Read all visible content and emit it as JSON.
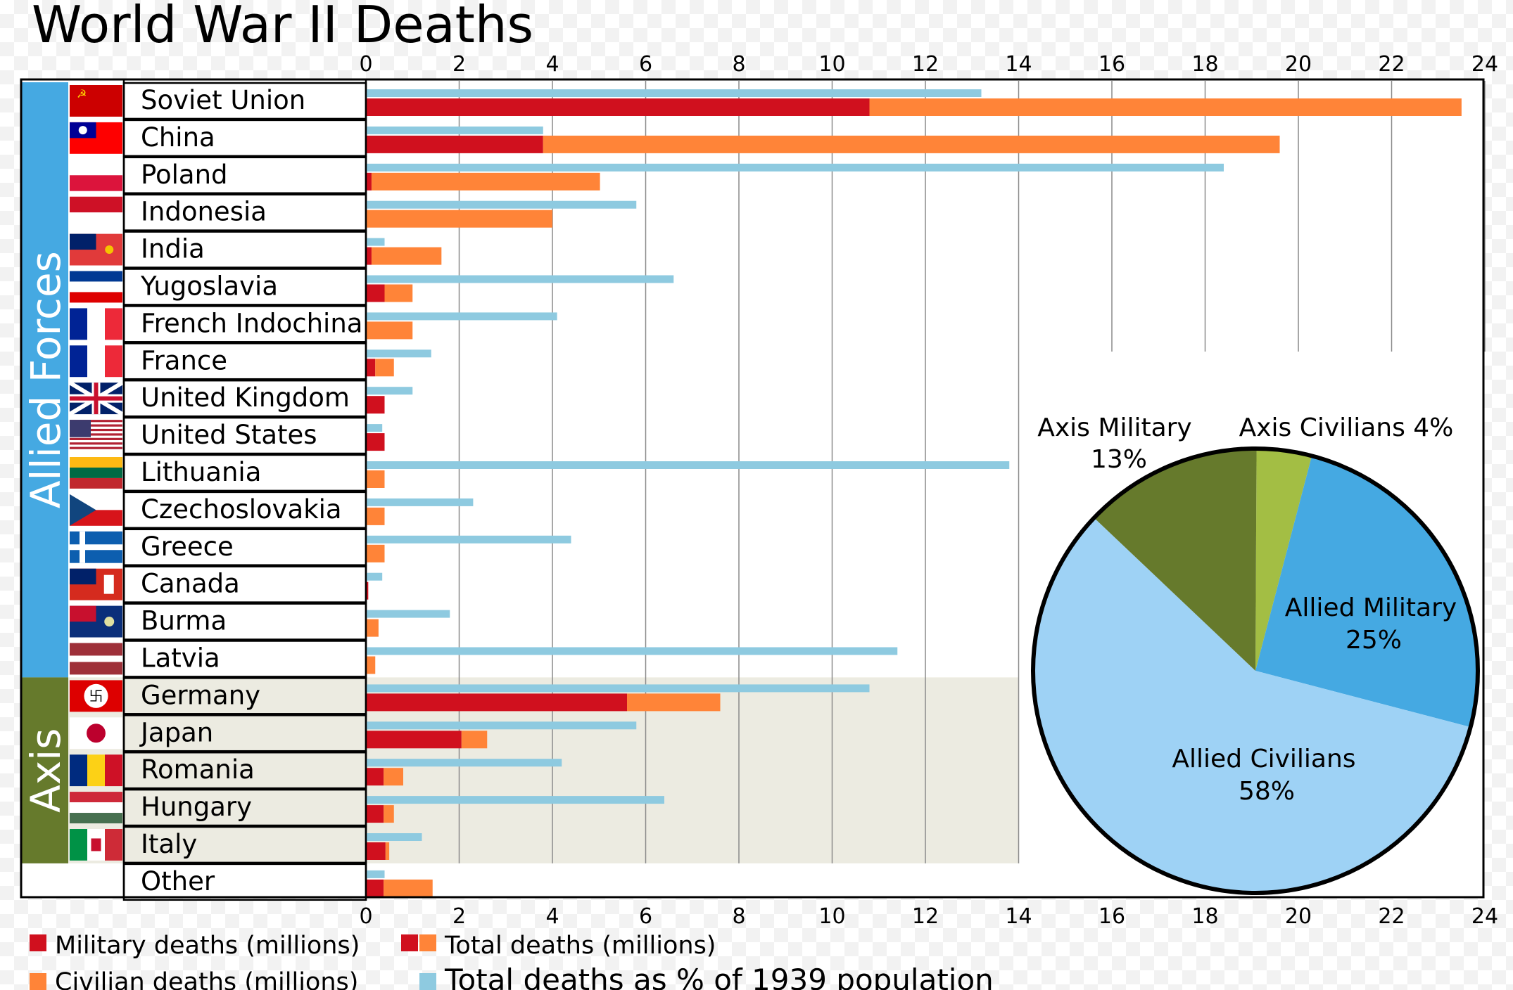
{
  "chart_data": {
    "type": "bar",
    "title": "World War II Deaths",
    "x_axis": {
      "ticks": [
        "0",
        "2",
        "4",
        "6",
        "8",
        "10",
        "12",
        "14",
        "16",
        "18",
        "20",
        "22",
        "24"
      ],
      "range": [
        0,
        24
      ]
    },
    "groups": [
      {
        "name": "Allied Forces",
        "color": "#45a9e2"
      },
      {
        "name": "Axis",
        "color": "#667a2c"
      }
    ],
    "categories": [
      {
        "name": "Soviet Union",
        "group": "Allied Forces",
        "flag": "soviet-flag",
        "military": 10.8,
        "civilian": 12.7,
        "percent": 13.2
      },
      {
        "name": "China",
        "group": "Allied Forces",
        "flag": "china-flag",
        "military": 3.8,
        "civilian": 15.8,
        "percent": 3.8
      },
      {
        "name": "Poland",
        "group": "Allied Forces",
        "flag": "poland-flag",
        "military": 0.12,
        "civilian": 4.9,
        "percent": 18.4
      },
      {
        "name": "Indonesia",
        "group": "Allied Forces",
        "flag": "indonesia-flag",
        "military": 0,
        "civilian": 4.0,
        "percent": 5.8
      },
      {
        "name": "India",
        "group": "Allied Forces",
        "flag": "india-flag",
        "military": 0.12,
        "civilian": 1.5,
        "percent": 0.4
      },
      {
        "name": "Yugoslavia",
        "group": "Allied Forces",
        "flag": "yugoslavia-flag",
        "military": 0.4,
        "civilian": 0.6,
        "percent": 6.6
      },
      {
        "name": "French Indochina",
        "group": "Allied Forces",
        "flag": "french-indochina-flag",
        "military": 0,
        "civilian": 1.0,
        "percent": 4.1
      },
      {
        "name": "France",
        "group": "Allied Forces",
        "flag": "france-flag",
        "military": 0.2,
        "civilian": 0.4,
        "percent": 1.4
      },
      {
        "name": "United Kingdom",
        "group": "Allied Forces",
        "flag": "uk-flag",
        "military": 0.4,
        "civilian": 0.0,
        "percent": 1.0
      },
      {
        "name": "United States",
        "group": "Allied Forces",
        "flag": "us-flag",
        "military": 0.4,
        "civilian": 0.0,
        "percent": 0.35
      },
      {
        "name": "Lithuania",
        "group": "Allied Forces",
        "flag": "lithuania-flag",
        "military": 0,
        "civilian": 0.4,
        "percent": 13.8
      },
      {
        "name": "Czechoslovakia",
        "group": "Allied Forces",
        "flag": "czechoslovakia-flag",
        "military": 0,
        "civilian": 0.4,
        "percent": 2.3
      },
      {
        "name": "Greece",
        "group": "Allied Forces",
        "flag": "greece-flag",
        "military": 0,
        "civilian": 0.4,
        "percent": 4.4
      },
      {
        "name": "Canada",
        "group": "Allied Forces",
        "flag": "canada-flag",
        "military": 0.05,
        "civilian": 0.0,
        "percent": 0.35
      },
      {
        "name": "Burma",
        "group": "Allied Forces",
        "flag": "burma-flag",
        "military": 0,
        "civilian": 0.27,
        "percent": 1.8
      },
      {
        "name": "Latvia",
        "group": "Allied Forces",
        "flag": "latvia-flag",
        "military": 0,
        "civilian": 0.2,
        "percent": 11.4
      },
      {
        "name": "Germany",
        "group": "Axis",
        "flag": "germany-flag",
        "military": 5.6,
        "civilian": 2.0,
        "percent": 10.8
      },
      {
        "name": "Japan",
        "group": "Axis",
        "flag": "japan-flag",
        "military": 2.05,
        "civilian": 0.55,
        "percent": 5.8
      },
      {
        "name": "Romania",
        "group": "Axis",
        "flag": "romania-flag",
        "military": 0.38,
        "civilian": 0.42,
        "percent": 4.2
      },
      {
        "name": "Hungary",
        "group": "Axis",
        "flag": "hungary-flag",
        "military": 0.38,
        "civilian": 0.22,
        "percent": 6.4
      },
      {
        "name": "Italy",
        "group": "Axis",
        "flag": "italy-flag",
        "military": 0.42,
        "civilian": 0.08,
        "percent": 1.2
      },
      {
        "name": "Other",
        "group": "",
        "flag": "",
        "military": 0.38,
        "civilian": 1.05,
        "percent": 0.4
      }
    ],
    "series": [
      {
        "name": "Military deaths (millions)",
        "color": "#d0101e"
      },
      {
        "name": "Civilian deaths (millions)",
        "color": "#ff8438"
      },
      {
        "name": "Total deaths (millions)",
        "color": "#d0101e"
      },
      {
        "name": "Total deaths as % of 1939 population",
        "color": "#8ecae0"
      }
    ],
    "pie": {
      "slices": [
        {
          "label": "Allied Military",
          "value_label": "25%",
          "value": 25,
          "color": "#45a9e2"
        },
        {
          "label": "Allied Civilians",
          "value_label": "58%",
          "value": 58,
          "color": "#9ed2f5"
        },
        {
          "label": "Axis Military",
          "value_label": "13%",
          "value": 13,
          "color": "#667a2c"
        },
        {
          "label": "Axis Civilians 4%",
          "value_label": "",
          "value": 4,
          "color": "#a3be44"
        }
      ]
    }
  }
}
